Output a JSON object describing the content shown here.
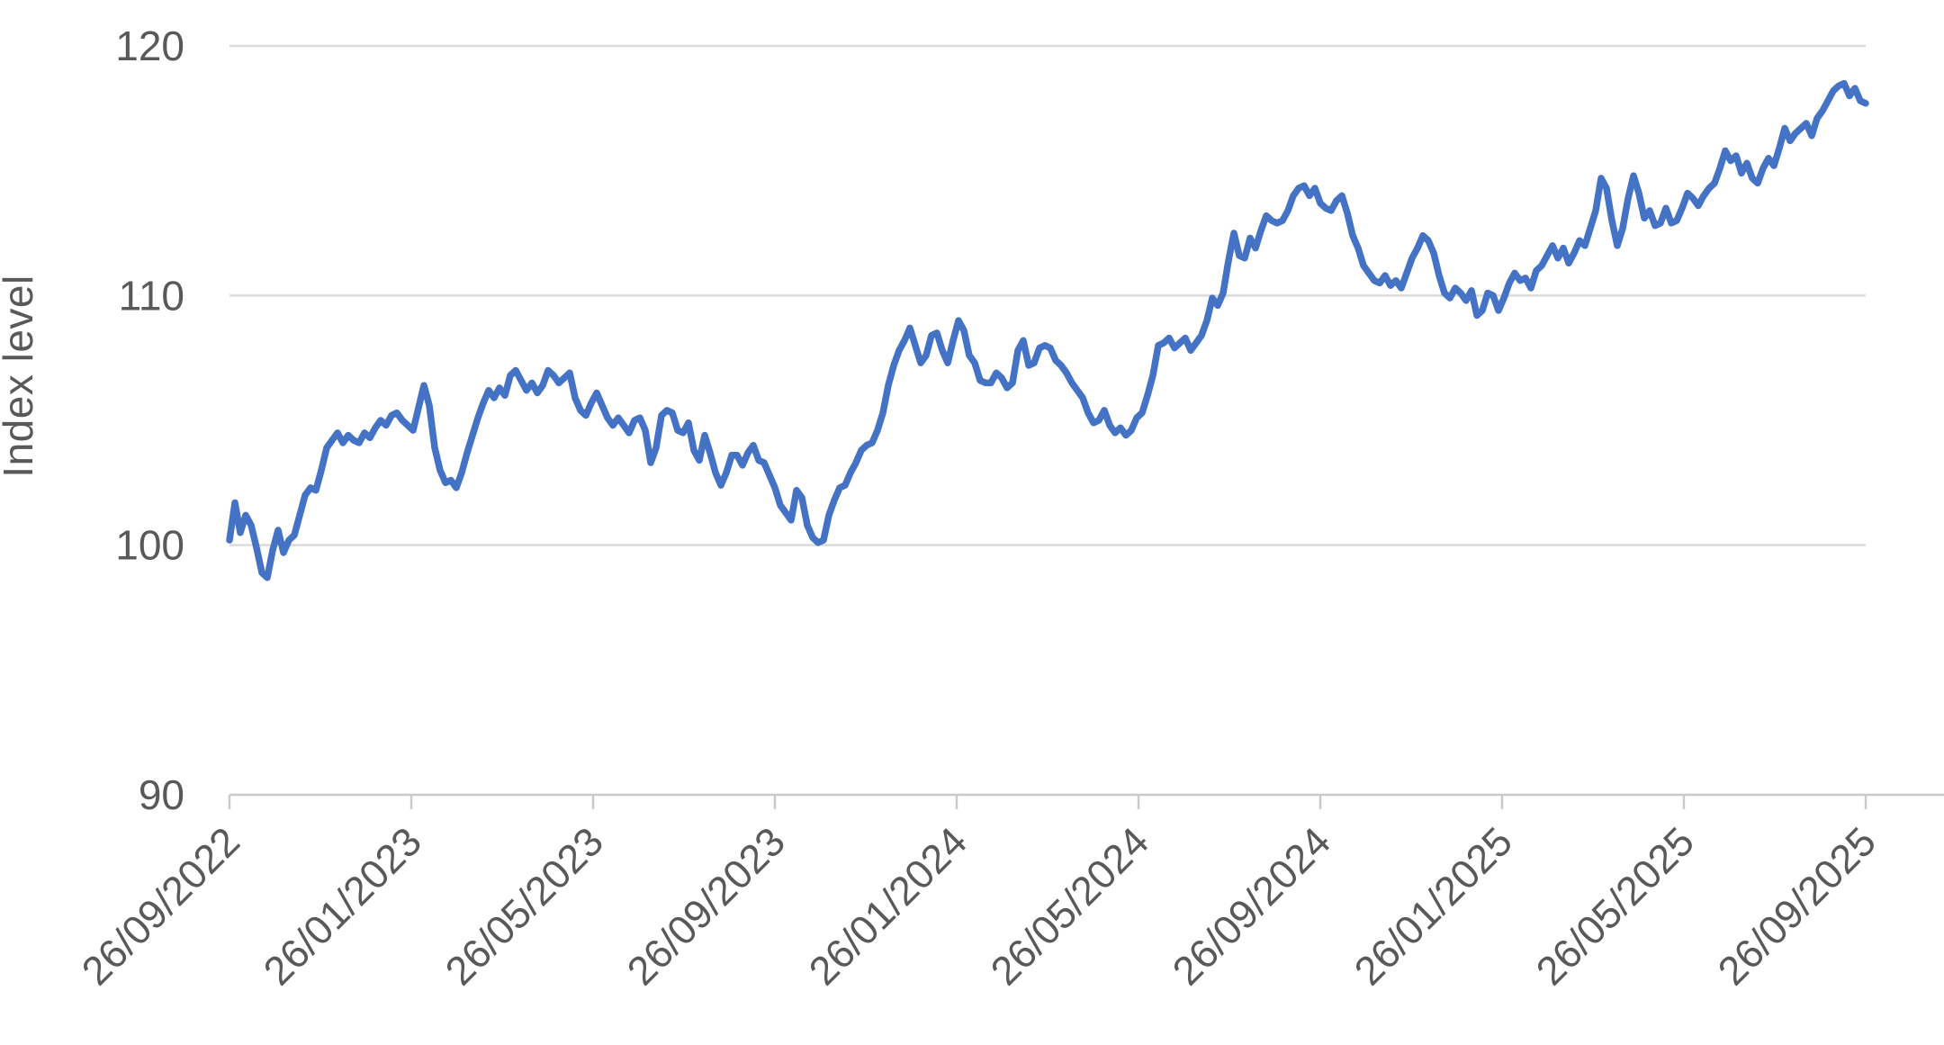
{
  "chart_data": {
    "type": "line",
    "title": "",
    "xlabel": "",
    "ylabel": "Index level",
    "ylim": [
      90,
      120
    ],
    "y_ticks": [
      90,
      100,
      110,
      120
    ],
    "x_tick_labels": [
      "26/09/2022",
      "26/01/2023",
      "26/05/2023",
      "26/09/2023",
      "26/01/2024",
      "26/05/2024",
      "26/09/2024",
      "26/01/2025",
      "26/05/2025",
      "26/09/2025"
    ],
    "x_range": {
      "start": "26/09/2022",
      "end": "26/09/2025"
    },
    "grid": "horizontal",
    "legend": "none",
    "colors": {
      "line": "#4472C4",
      "grid": "#DBDBDB",
      "axis": "#C9C9C9",
      "tick_text": "#595959",
      "background": "#FFFFFF"
    },
    "series": [
      {
        "name": "Index level",
        "sampling": "uniform over x_range",
        "values": [
          100.2,
          101.7,
          100.5,
          101.2,
          100.8,
          99.9,
          98.9,
          98.7,
          99.8,
          100.6,
          99.7,
          100.2,
          100.4,
          101.2,
          102.0,
          102.3,
          102.2,
          103.0,
          103.9,
          104.2,
          104.5,
          104.1,
          104.4,
          104.2,
          104.1,
          104.5,
          104.3,
          104.7,
          105.0,
          104.8,
          105.2,
          105.3,
          105.0,
          104.8,
          104.6,
          105.5,
          106.4,
          105.6,
          103.9,
          103.0,
          102.5,
          102.6,
          102.3,
          102.9,
          103.7,
          104.4,
          105.1,
          105.7,
          106.2,
          105.9,
          106.3,
          106.0,
          106.8,
          107.0,
          106.6,
          106.2,
          106.5,
          106.1,
          106.4,
          107.0,
          106.8,
          106.5,
          106.7,
          106.9,
          105.9,
          105.4,
          105.2,
          105.7,
          106.1,
          105.6,
          105.1,
          104.8,
          105.1,
          104.8,
          104.5,
          105.0,
          105.1,
          104.6,
          103.3,
          103.9,
          105.2,
          105.4,
          105.3,
          104.6,
          104.5,
          104.9,
          103.8,
          103.4,
          104.4,
          103.7,
          102.9,
          102.4,
          102.9,
          103.6,
          103.6,
          103.2,
          103.7,
          104.0,
          103.4,
          103.3,
          102.8,
          102.3,
          101.6,
          101.3,
          101.0,
          102.2,
          101.9,
          100.8,
          100.3,
          100.1,
          100.2,
          101.2,
          101.8,
          102.3,
          102.4,
          102.9,
          103.3,
          103.8,
          104.0,
          104.1,
          104.6,
          105.3,
          106.4,
          107.2,
          107.8,
          108.2,
          108.7,
          108.0,
          107.3,
          107.6,
          108.4,
          108.5,
          107.8,
          107.3,
          108.2,
          109.0,
          108.6,
          107.6,
          107.3,
          106.6,
          106.5,
          106.5,
          106.9,
          106.7,
          106.3,
          106.5,
          107.8,
          108.2,
          107.2,
          107.3,
          107.9,
          108.0,
          107.9,
          107.4,
          107.2,
          106.9,
          106.5,
          106.2,
          105.9,
          105.3,
          104.9,
          105.0,
          105.4,
          104.8,
          104.5,
          104.7,
          104.4,
          104.6,
          105.1,
          105.3,
          106.0,
          106.8,
          108.0,
          108.1,
          108.3,
          107.9,
          108.1,
          108.3,
          107.8,
          108.1,
          108.4,
          109.0,
          109.9,
          109.6,
          110.1,
          111.4,
          112.5,
          111.6,
          111.5,
          112.3,
          111.9,
          112.6,
          113.2,
          113.0,
          112.9,
          113.0,
          113.4,
          114.0,
          114.3,
          114.4,
          114.0,
          114.3,
          113.7,
          113.5,
          113.4,
          113.8,
          114.0,
          113.3,
          112.4,
          111.9,
          111.2,
          110.9,
          110.6,
          110.5,
          110.8,
          110.4,
          110.6,
          110.3,
          110.9,
          111.5,
          111.9,
          112.4,
          112.2,
          111.7,
          110.8,
          110.1,
          109.9,
          110.3,
          110.1,
          109.8,
          110.2,
          109.2,
          109.4,
          110.1,
          110.0,
          109.4,
          109.9,
          110.5,
          110.9,
          110.6,
          110.7,
          110.3,
          111.0,
          111.2,
          111.6,
          112.0,
          111.5,
          111.9,
          111.3,
          111.7,
          112.2,
          112.0,
          112.7,
          113.4,
          114.7,
          114.3,
          113.0,
          112.0,
          112.7,
          113.9,
          114.8,
          114.1,
          113.1,
          113.4,
          112.8,
          112.9,
          113.5,
          112.9,
          113.0,
          113.5,
          114.1,
          113.9,
          113.6,
          114.0,
          114.3,
          114.5,
          115.1,
          115.8,
          115.4,
          115.6,
          114.9,
          115.3,
          114.7,
          114.5,
          115.1,
          115.5,
          115.2,
          115.9,
          116.7,
          116.2,
          116.5,
          116.7,
          116.9,
          116.4,
          117.1,
          117.4,
          117.8,
          118.2,
          118.4,
          118.5,
          118.0,
          118.3,
          117.8,
          117.7
        ]
      }
    ]
  }
}
